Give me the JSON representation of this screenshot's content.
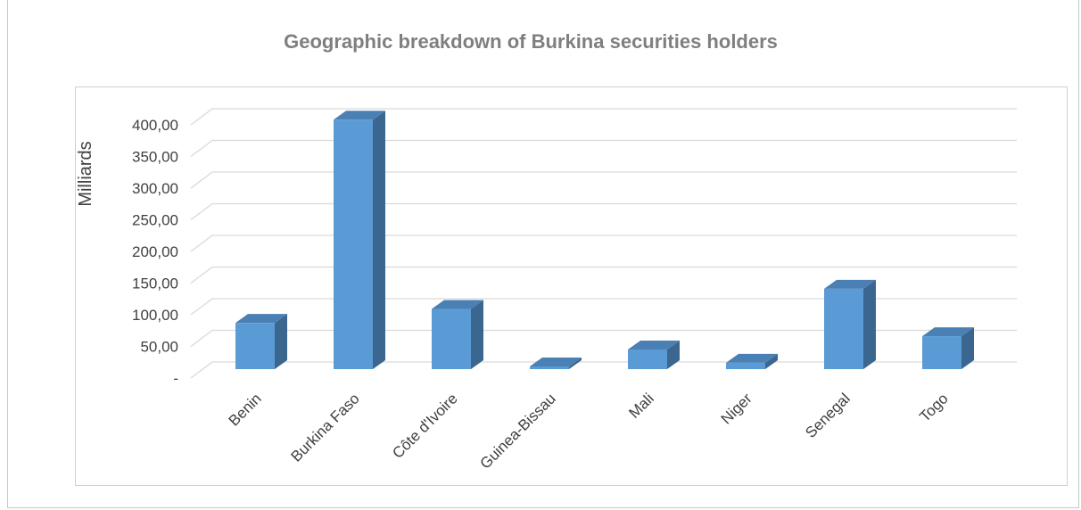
{
  "chart_data": {
    "type": "bar",
    "title": "Geographic breakdown of Burkina securities holders",
    "ylabel": "Milliards",
    "xlabel": "",
    "categories": [
      "Benin",
      "Burkina Faso",
      "Côte d'Ivoire",
      "Guinea-Bissau",
      "Mali",
      "Niger",
      "Senegal",
      "Togo"
    ],
    "values": [
      73,
      394,
      95,
      3,
      31,
      10,
      127,
      52
    ],
    "ylim": [
      0,
      400
    ],
    "yticks": [
      0,
      50,
      100,
      150,
      200,
      250,
      300,
      350,
      400
    ],
    "ytick_labels": [
      "-",
      "50,00",
      "100,00",
      "150,00",
      "200,00",
      "250,00",
      "300,00",
      "350,00",
      "400,00"
    ],
    "grid": true,
    "legend": "none",
    "colors": {
      "bar_front": "#5b9bd5",
      "bar_side": "#3a6690",
      "bar_top": "#4a80b4",
      "grid": "#d9d9d9",
      "title": "#7f7f7f"
    }
  }
}
